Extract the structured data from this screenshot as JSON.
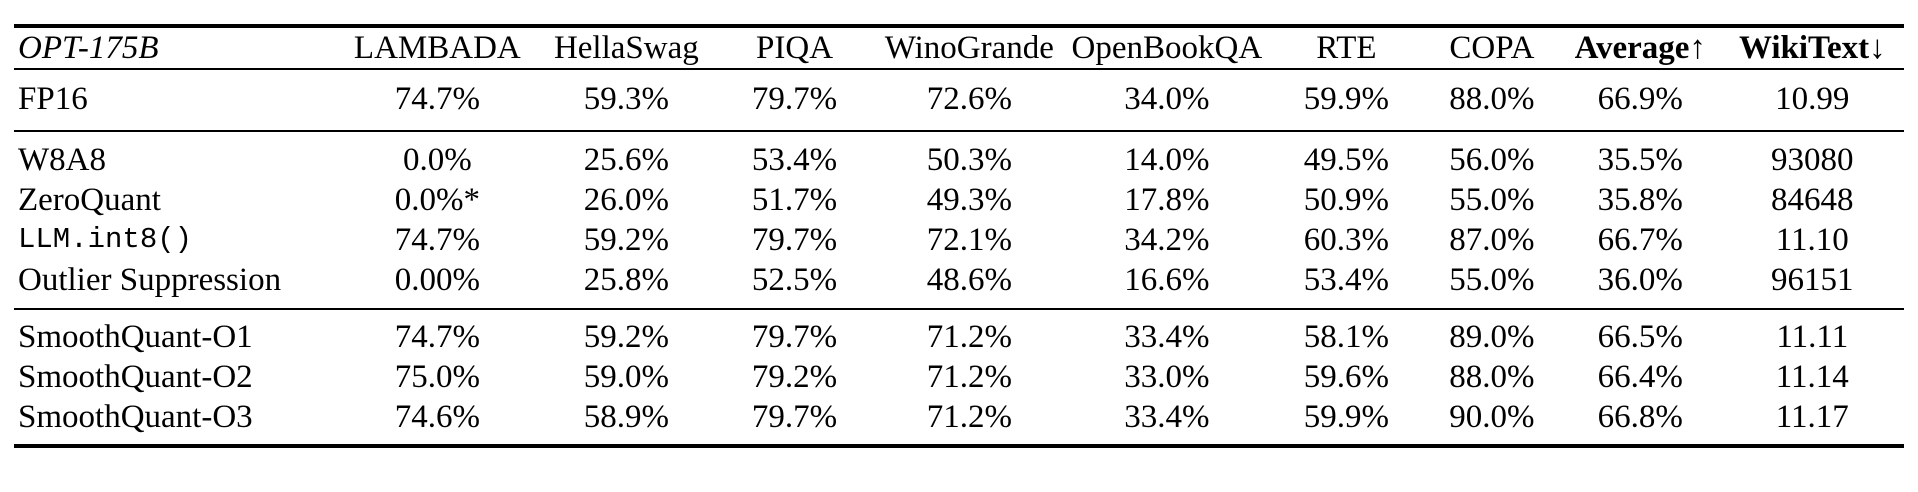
{
  "colors": {
    "text": "#000000",
    "background": "#ffffff",
    "rule": "#000000"
  },
  "table": {
    "columns": [
      {
        "label": "OPT-175B",
        "italic": true,
        "bold": false
      },
      {
        "label": "LAMBADA",
        "italic": false,
        "bold": false
      },
      {
        "label": "HellaSwag",
        "italic": false,
        "bold": false
      },
      {
        "label": "PIQA",
        "italic": false,
        "bold": false
      },
      {
        "label": "WinoGrande",
        "italic": false,
        "bold": false
      },
      {
        "label": "OpenBookQA",
        "italic": false,
        "bold": false
      },
      {
        "label": "RTE",
        "italic": false,
        "bold": false
      },
      {
        "label": "COPA",
        "italic": false,
        "bold": false
      },
      {
        "label": "Average↑",
        "italic": false,
        "bold": true
      },
      {
        "label": "WikiText↓",
        "italic": false,
        "bold": true
      }
    ],
    "groups": [
      {
        "name": "baseline",
        "rows": [
          {
            "label": "FP16",
            "mono": false,
            "values": [
              "74.7%",
              "59.3%",
              "79.7%",
              "72.6%",
              "34.0%",
              "59.9%",
              "88.0%",
              "66.9%",
              "10.99"
            ]
          }
        ]
      },
      {
        "name": "quant-baselines",
        "rows": [
          {
            "label": "W8A8",
            "mono": false,
            "values": [
              "0.0%",
              "25.6%",
              "53.4%",
              "50.3%",
              "14.0%",
              "49.5%",
              "56.0%",
              "35.5%",
              "93080"
            ]
          },
          {
            "label": "ZeroQuant",
            "mono": false,
            "values": [
              "0.0%*",
              "26.0%",
              "51.7%",
              "49.3%",
              "17.8%",
              "50.9%",
              "55.0%",
              "35.8%",
              "84648"
            ]
          },
          {
            "label": "LLM.int8()",
            "mono": true,
            "values": [
              "74.7%",
              "59.2%",
              "79.7%",
              "72.1%",
              "34.2%",
              "60.3%",
              "87.0%",
              "66.7%",
              "11.10"
            ]
          },
          {
            "label": "Outlier Suppression",
            "mono": false,
            "values": [
              "0.00%",
              "25.8%",
              "52.5%",
              "48.6%",
              "16.6%",
              "53.4%",
              "55.0%",
              "36.0%",
              "96151"
            ]
          }
        ]
      },
      {
        "name": "smoothquant",
        "rows": [
          {
            "label": "SmoothQuant-O1",
            "mono": false,
            "values": [
              "74.7%",
              "59.2%",
              "79.7%",
              "71.2%",
              "33.4%",
              "58.1%",
              "89.0%",
              "66.5%",
              "11.11"
            ]
          },
          {
            "label": "SmoothQuant-O2",
            "mono": false,
            "values": [
              "75.0%",
              "59.0%",
              "79.2%",
              "71.2%",
              "33.0%",
              "59.6%",
              "88.0%",
              "66.4%",
              "11.14"
            ]
          },
          {
            "label": "SmoothQuant-O3",
            "mono": false,
            "values": [
              "74.6%",
              "58.9%",
              "79.7%",
              "71.2%",
              "33.4%",
              "59.9%",
              "90.0%",
              "66.8%",
              "11.17"
            ]
          }
        ]
      }
    ]
  }
}
